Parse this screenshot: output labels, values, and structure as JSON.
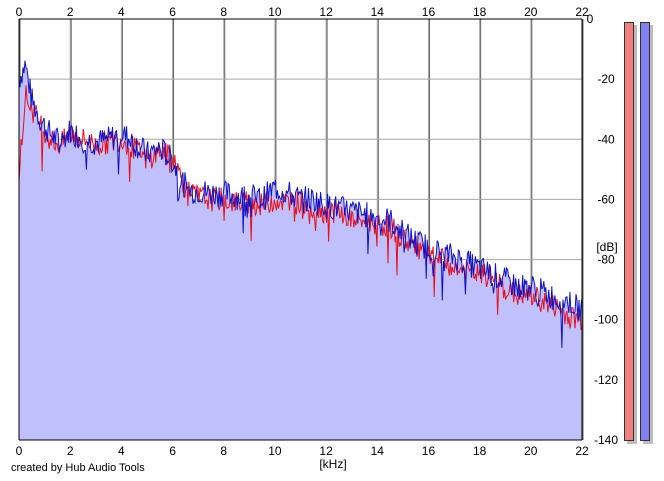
{
  "chart_data": {
    "type": "area",
    "xlabel": "[kHz]",
    "ylabel": "[dB]",
    "xlim": [
      0,
      22
    ],
    "ylim": [
      -140,
      0
    ],
    "x_ticks": [
      "0",
      "2",
      "4",
      "6",
      "8",
      "10",
      "12",
      "14",
      "16",
      "18",
      "20",
      "22"
    ],
    "y_ticks": [
      "0",
      "-20",
      "-40",
      "-60",
      "-80",
      "-100",
      "-120",
      "-140"
    ],
    "grid": true,
    "series": [
      {
        "color": "#e8101c",
        "x": [
          0,
          0.25,
          0.5,
          0.8,
          1.2,
          1.6,
          2.0,
          2.5,
          3.0,
          3.5,
          4.0,
          4.5,
          5.0,
          5.5,
          6.0,
          6.3,
          6.6,
          7.0,
          7.5,
          8.0,
          8.5,
          9.0,
          9.5,
          10.0,
          10.5,
          11.0,
          11.5,
          12.0,
          12.5,
          13.0,
          13.5,
          14.0,
          14.5,
          15.0,
          15.5,
          16.0,
          16.5,
          17.0,
          17.5,
          18.0,
          18.5,
          19.0,
          19.5,
          20.0,
          20.5,
          21.0,
          21.5,
          22.0
        ],
        "values": [
          -50,
          -25,
          -30,
          -34,
          -40,
          -42,
          -38,
          -40,
          -42,
          -41,
          -40,
          -43,
          -47,
          -44,
          -46,
          -52,
          -58,
          -59,
          -60,
          -60,
          -61,
          -61,
          -62,
          -60,
          -61,
          -61,
          -63,
          -64,
          -64,
          -67,
          -67,
          -68,
          -69,
          -73,
          -76,
          -79,
          -80,
          -83,
          -84,
          -85,
          -86,
          -90,
          -92,
          -92,
          -94,
          -96,
          -99,
          -100
        ]
      },
      {
        "color": "#1010c8",
        "x": [
          0,
          0.25,
          0.5,
          0.8,
          1.2,
          1.6,
          2.0,
          2.5,
          3.0,
          3.5,
          4.0,
          4.5,
          5.0,
          5.5,
          6.0,
          6.3,
          6.6,
          7.0,
          7.5,
          8.0,
          8.5,
          9.0,
          9.5,
          10.0,
          10.5,
          11.0,
          11.5,
          12.0,
          12.5,
          13.0,
          13.5,
          14.0,
          14.5,
          15.0,
          15.5,
          16.0,
          16.5,
          17.0,
          17.5,
          18.0,
          18.5,
          19.0,
          19.5,
          20.0,
          20.5,
          21.0,
          21.5,
          22.0
        ],
        "values": [
          -20,
          -15,
          -27,
          -33,
          -38,
          -41,
          -37,
          -40,
          -41,
          -40,
          -38,
          -41,
          -45,
          -43,
          -47,
          -53,
          -57,
          -57,
          -58,
          -58,
          -59,
          -59,
          -60,
          -56,
          -58,
          -60,
          -60,
          -62,
          -63,
          -64,
          -65,
          -66,
          -67,
          -71,
          -74,
          -76,
          -78,
          -79,
          -81,
          -83,
          -85,
          -87,
          -89,
          -89,
          -91,
          -93,
          -94,
          -97
        ]
      }
    ],
    "fill_color": "#c0c0fc"
  },
  "footer": {
    "credit": "created by Hub Audio Tools"
  },
  "meters": {
    "left_color": "#f08080",
    "right_color": "#8080f0"
  }
}
